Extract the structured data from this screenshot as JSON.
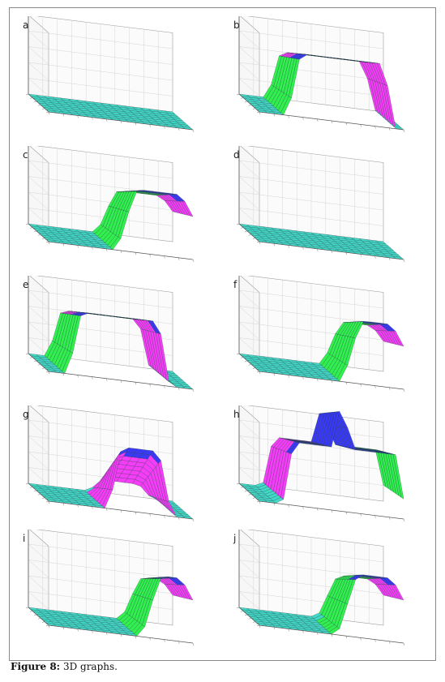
{
  "figure": {
    "caption_label": "Figure 8:",
    "caption_text": "3D graphs."
  },
  "colors": {
    "floor": "#43d9c9",
    "green": "#31ef4f",
    "blue": "#3a39f5",
    "magenta": "#f43df7",
    "red": "#f02a2a",
    "cyan": "#35d8e6",
    "grid": "#d4d4d4",
    "box": "#9a9a9a"
  },
  "panels": [
    {
      "letter": "a",
      "surface": "flat",
      "side": "",
      "color": "floor",
      "color2": "",
      "x_start": 0,
      "x_end": 0
    },
    {
      "letter": "b",
      "surface": "plateau",
      "side": "left",
      "color": "magenta",
      "color2": "green",
      "x_start": 0.18,
      "x_end": 0.85
    },
    {
      "letter": "c",
      "surface": "ramp",
      "side": "right",
      "color": "green",
      "color2": "magenta",
      "x_start": 0.45,
      "x_end": 1.0
    },
    {
      "letter": "d",
      "surface": "flat",
      "side": "",
      "color": "floor",
      "color2": "",
      "x_start": 0,
      "x_end": 0
    },
    {
      "letter": "e",
      "surface": "plateau",
      "side": "left",
      "color": "magenta",
      "color2": "green",
      "x_start": 0.12,
      "x_end": 0.75
    },
    {
      "letter": "f",
      "surface": "ramp",
      "side": "right",
      "color": "green",
      "color2": "magenta",
      "x_start": 0.55,
      "x_end": 1.0
    },
    {
      "letter": "g",
      "surface": "peak",
      "side": "",
      "color": "magenta",
      "color2": "green",
      "x_start": 0.4,
      "x_end": 0.75
    },
    {
      "letter": "h",
      "surface": "double",
      "side": "",
      "color": "magenta",
      "color2": "green",
      "x_start": 0.15,
      "x_end": 1.0
    },
    {
      "letter": "i",
      "surface": "ramp",
      "side": "right",
      "color": "green",
      "color2": "magenta",
      "x_start": 0.62,
      "x_end": 1.0
    },
    {
      "letter": "j",
      "surface": "ramp",
      "side": "right",
      "color": "green",
      "color2": "magenta",
      "x_start": 0.52,
      "x_end": 1.0
    }
  ]
}
